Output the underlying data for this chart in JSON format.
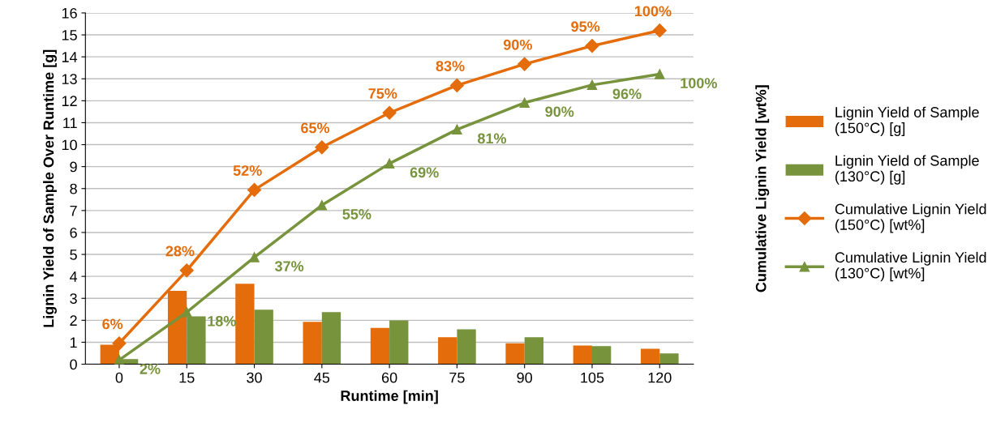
{
  "chart_data": {
    "type": "bar",
    "xlabel": "Runtime [min]",
    "ylabel": "Lignin Yield of Sample Over Runtime [g]",
    "y2label": "Cumulative Lignin Yield [wt%]",
    "categories": [
      "0",
      "15",
      "30",
      "45",
      "60",
      "75",
      "90",
      "105",
      "120"
    ],
    "ylim": [
      0,
      16
    ],
    "yticks": [
      0,
      1,
      2,
      3,
      4,
      5,
      6,
      7,
      8,
      9,
      10,
      11,
      12,
      13,
      14,
      15,
      16
    ],
    "grid": "y",
    "legend": "right",
    "series": [
      {
        "name": "Lignin Yield of Sample (150°C) [g]",
        "color": "#e46c0a",
        "values": [
          0.89,
          3.34,
          3.66,
          1.93,
          1.65,
          1.23,
          0.95,
          0.85,
          0.7
        ]
      },
      {
        "name": "Lignin Yield of Sample (130°C) [g]",
        "color": "#77933c",
        "values": [
          0.23,
          2.18,
          2.48,
          2.37,
          1.99,
          1.59,
          1.23,
          0.82,
          0.49
        ]
      },
      {
        "name": "Cumulative Lignin Yield (150°C) [wt%]",
        "type": "line",
        "color": "#e46c0a",
        "marker": "diamond",
        "values": [
          0.95,
          4.27,
          7.94,
          9.88,
          11.45,
          12.7,
          13.67,
          14.5,
          15.2
        ]
      },
      {
        "name": "Cumulative Lignin Yield (130°C) [wt%]",
        "type": "line",
        "color": "#77933c",
        "marker": "triangle",
        "values": [
          0.19,
          2.37,
          4.87,
          7.24,
          9.14,
          10.69,
          11.91,
          12.72,
          13.21
        ]
      }
    ],
    "annotations": [
      {
        "text": "6%",
        "x": "0",
        "y": 0.95
      },
      {
        "text": "28%",
        "x": "15",
        "y": 4.27
      },
      {
        "text": "52%",
        "x": "30",
        "y": 7.94
      },
      {
        "text": "65%",
        "x": "45",
        "y": 9.88
      },
      {
        "text": "75%",
        "x": "60",
        "y": 11.45
      },
      {
        "text": "83%",
        "x": "75",
        "y": 12.7
      },
      {
        "text": "90%",
        "x": "90",
        "y": 13.67
      },
      {
        "text": "95%",
        "x": "105",
        "y": 14.5
      },
      {
        "text": "100%",
        "x": "120",
        "y": 15.2
      },
      {
        "text": "2%",
        "x": "0",
        "y": 0.19
      },
      {
        "text": "18%",
        "x": "15",
        "y": 2.37
      },
      {
        "text": "37%",
        "x": "30",
        "y": 4.87
      },
      {
        "text": "55%",
        "x": "45",
        "y": 7.24
      },
      {
        "text": "69%",
        "x": "60",
        "y": 9.14
      },
      {
        "text": "81%",
        "x": "75",
        "y": 10.69
      },
      {
        "text": "90%",
        "x": "90",
        "y": 11.91
      },
      {
        "text": "96%",
        "x": "105",
        "y": 12.72
      },
      {
        "text": "100%",
        "x": "120",
        "y": 13.21
      }
    ]
  }
}
